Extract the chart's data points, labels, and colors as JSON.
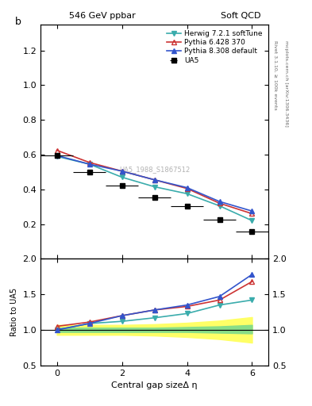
{
  "title_left": "546 GeV ppbar",
  "title_right": "Soft QCD",
  "ylabel_main": "b",
  "ylabel_ratio": "Ratio to UA5",
  "xlabel": "Central gap sizeΔ η",
  "right_label_top": "Rivet 3.1.10, ≥ 100k events",
  "right_label_bottom": "mcplots.cern.ch [arXiv:1306.3436]",
  "watermark": "UA5_1988_S1867512",
  "ua5_x": [
    0,
    1,
    2,
    3,
    4,
    5,
    6
  ],
  "ua5_y": [
    0.595,
    0.5,
    0.42,
    0.355,
    0.305,
    0.225,
    0.155
  ],
  "herwig_x": [
    0,
    1,
    2,
    3,
    4,
    5,
    6
  ],
  "herwig_y": [
    0.59,
    0.545,
    0.47,
    0.415,
    0.375,
    0.305,
    0.22
  ],
  "herwig_color": "#3aacac",
  "herwig_label": "Herwig 7.2.1 softTune",
  "pythia6_x": [
    0,
    1,
    2,
    3,
    4,
    5,
    6
  ],
  "pythia6_y": [
    0.625,
    0.555,
    0.505,
    0.455,
    0.405,
    0.32,
    0.26
  ],
  "pythia6_color": "#cc3333",
  "pythia6_label": "Pythia 6.428 370",
  "pythia8_x": [
    0,
    1,
    2,
    3,
    4,
    5,
    6
  ],
  "pythia8_y": [
    0.595,
    0.545,
    0.505,
    0.455,
    0.41,
    0.33,
    0.275
  ],
  "pythia8_color": "#3355cc",
  "pythia8_label": "Pythia 8.308 default",
  "herwig_ratio": [
    1.0,
    1.09,
    1.12,
    1.17,
    1.23,
    1.35,
    1.42
  ],
  "pythia6_ratio": [
    1.05,
    1.11,
    1.2,
    1.28,
    1.33,
    1.42,
    1.68
  ],
  "pythia8_ratio": [
    1.0,
    1.09,
    1.2,
    1.28,
    1.35,
    1.47,
    1.78
  ],
  "ratio_x": [
    0,
    1,
    2,
    3,
    4,
    5,
    6
  ],
  "ratio_green_y1": [
    0.97,
    0.97,
    0.97,
    0.97,
    0.97,
    0.96,
    0.95
  ],
  "ratio_green_y2": [
    1.03,
    1.03,
    1.03,
    1.03,
    1.04,
    1.05,
    1.07
  ],
  "ratio_yellow_y1": [
    0.93,
    0.93,
    0.93,
    0.92,
    0.9,
    0.87,
    0.82
  ],
  "ratio_yellow_y2": [
    1.07,
    1.07,
    1.07,
    1.08,
    1.1,
    1.13,
    1.18
  ],
  "ylim_main": [
    0.0,
    1.35
  ],
  "ylim_ratio": [
    0.5,
    2.0
  ],
  "xlim_main": [
    -0.5,
    6.5
  ],
  "xlim_ratio": [
    -0.5,
    6.5
  ],
  "xticks": [
    0,
    2,
    4,
    6
  ],
  "yticks_main": [
    0.2,
    0.4,
    0.6,
    0.8,
    1.0,
    1.2
  ],
  "yticks_ratio": [
    0.5,
    1.0,
    1.5,
    2.0
  ]
}
